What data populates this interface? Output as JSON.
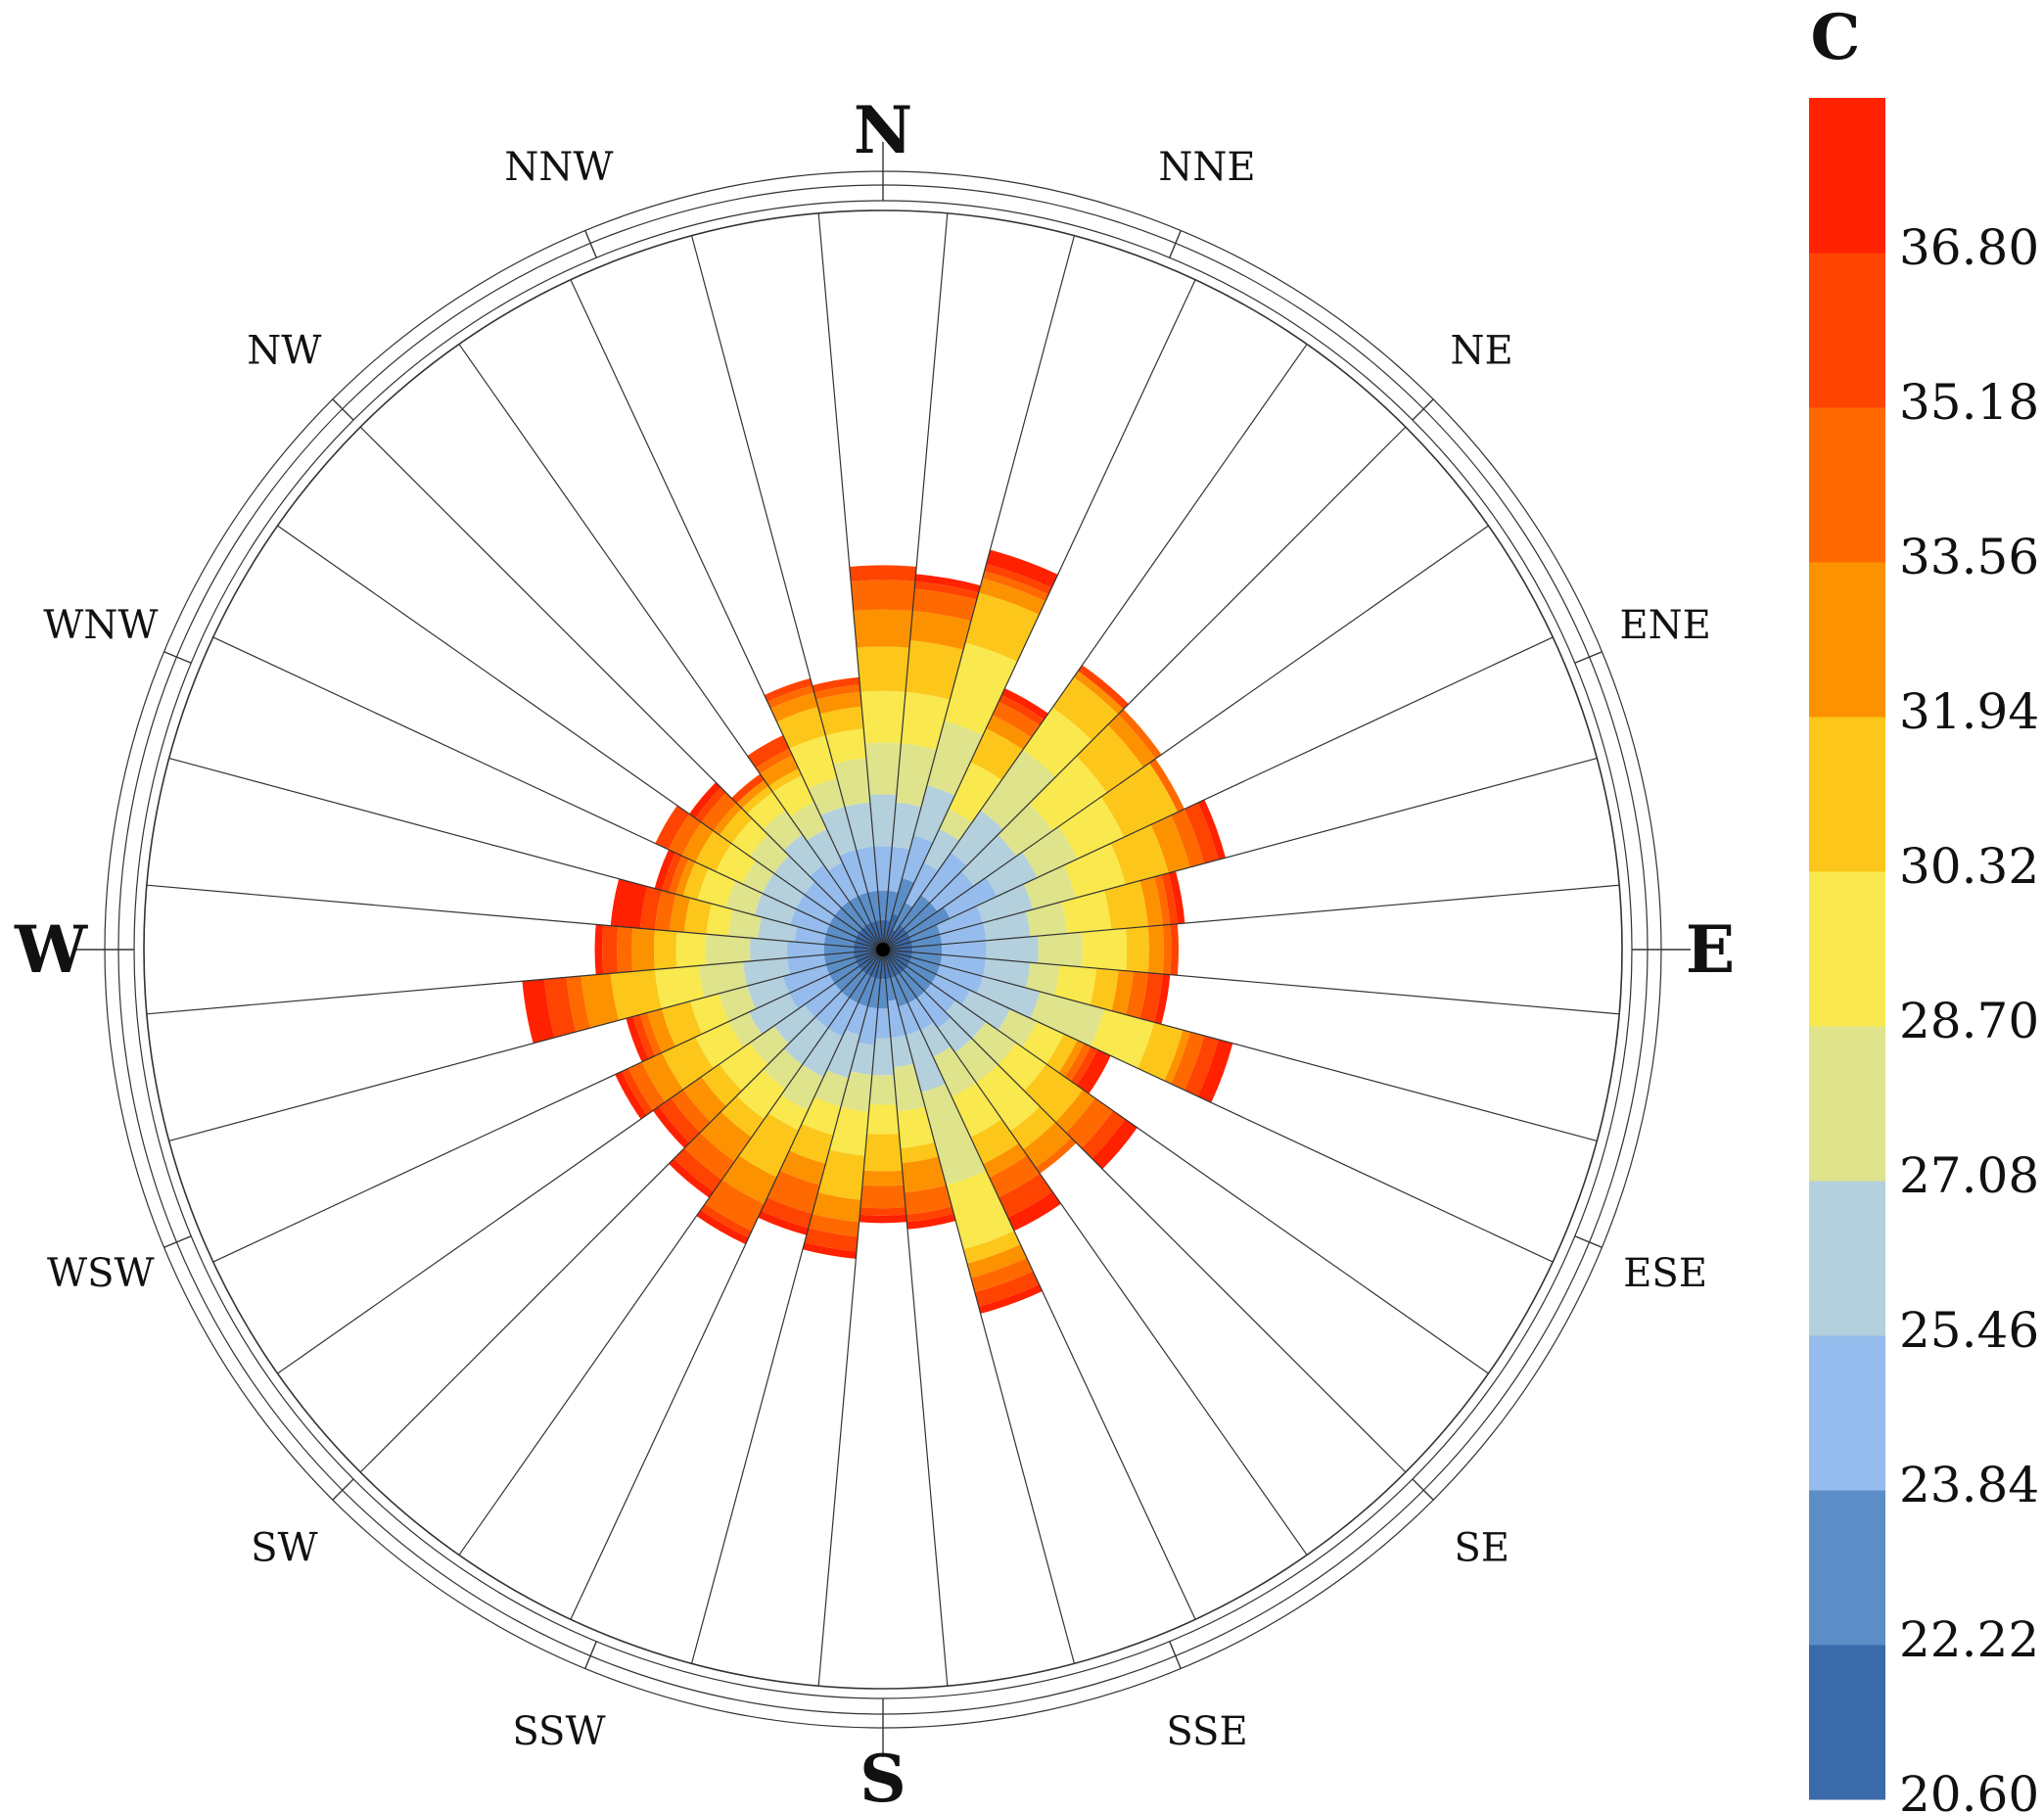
{
  "chart_data": {
    "type": "rose",
    "title": "",
    "legend_title": "C",
    "legend_position": "right",
    "direction_labels": {
      "major": [
        "N",
        "E",
        "S",
        "W"
      ],
      "minor": [
        "NNE",
        "NE",
        "ENE",
        "ESE",
        "SE",
        "SSE",
        "SSW",
        "SW",
        "WSW",
        "WNW",
        "NW",
        "NNW"
      ]
    },
    "bin_edges": [
      20.6,
      22.22,
      23.84,
      25.46,
      27.08,
      28.7,
      30.32,
      31.94,
      33.56,
      35.18,
      36.8
    ],
    "legend_ticks": [
      "36.80",
      "35.18",
      "33.56",
      "31.94",
      "30.32",
      "28.70",
      "27.08",
      "25.46",
      "23.84",
      "22.22",
      "20.60"
    ],
    "colors": [
      "#3b6aaa",
      "#5b8ec7",
      "#95bcec",
      "#b3d0dc",
      "#dee38c",
      "#f9e84e",
      "#fcc71a",
      "#fd9200",
      "#ff6a00",
      "#ff4300",
      "#ff2100"
    ],
    "sector_count": 36,
    "sector_start_angle_deg": -5,
    "radial_max": 1.0,
    "note": "Stacked radial extents per 10-degree sector (relative to outer ring = 1.0), one list of 11 class boundaries per sector, innermost to outermost.",
    "sectors": [
      [
        0.04,
        0.08,
        0.14,
        0.21,
        0.28,
        0.35,
        0.41,
        0.46,
        0.5,
        0.52,
        0.52
      ],
      [
        0.04,
        0.08,
        0.14,
        0.2,
        0.28,
        0.35,
        0.42,
        0.46,
        0.49,
        0.5,
        0.51
      ],
      [
        0.05,
        0.1,
        0.16,
        0.23,
        0.32,
        0.43,
        0.5,
        0.52,
        0.53,
        0.54,
        0.56
      ],
      [
        0.03,
        0.07,
        0.13,
        0.18,
        0.21,
        0.28,
        0.33,
        0.35,
        0.37,
        0.38,
        0.39
      ],
      [
        0.04,
        0.09,
        0.16,
        0.23,
        0.33,
        0.4,
        0.45,
        0.46,
        0.46,
        0.47,
        0.47
      ],
      [
        0.04,
        0.09,
        0.15,
        0.22,
        0.28,
        0.37,
        0.43,
        0.45,
        0.46,
        0.46,
        0.46
      ],
      [
        0.04,
        0.1,
        0.17,
        0.23,
        0.29,
        0.36,
        0.44,
        0.44,
        0.45,
        0.45,
        0.45
      ],
      [
        0.04,
        0.08,
        0.14,
        0.21,
        0.27,
        0.34,
        0.4,
        0.43,
        0.45,
        0.47,
        0.48
      ],
      [
        0.04,
        0.08,
        0.14,
        0.2,
        0.25,
        0.31,
        0.36,
        0.38,
        0.39,
        0.4,
        0.41
      ],
      [
        0.04,
        0.08,
        0.14,
        0.21,
        0.27,
        0.33,
        0.36,
        0.38,
        0.39,
        0.4,
        0.4
      ],
      [
        0.04,
        0.08,
        0.14,
        0.2,
        0.24,
        0.29,
        0.32,
        0.34,
        0.36,
        0.38,
        0.39
      ],
      [
        0.04,
        0.08,
        0.14,
        0.22,
        0.31,
        0.38,
        0.42,
        0.43,
        0.45,
        0.47,
        0.49
      ],
      [
        0.04,
        0.08,
        0.13,
        0.19,
        0.23,
        0.27,
        0.29,
        0.3,
        0.31,
        0.32,
        0.34
      ],
      [
        0.04,
        0.08,
        0.12,
        0.17,
        0.22,
        0.27,
        0.33,
        0.35,
        0.38,
        0.4,
        0.42
      ],
      [
        0.04,
        0.08,
        0.13,
        0.17,
        0.22,
        0.3,
        0.33,
        0.36,
        0.37,
        0.37,
        0.37
      ],
      [
        0.04,
        0.08,
        0.12,
        0.16,
        0.22,
        0.28,
        0.32,
        0.34,
        0.37,
        0.4,
        0.42
      ],
      [
        0.04,
        0.08,
        0.12,
        0.2,
        0.33,
        0.42,
        0.44,
        0.46,
        0.48,
        0.5,
        0.51
      ],
      [
        0.04,
        0.07,
        0.12,
        0.16,
        0.22,
        0.27,
        0.29,
        0.33,
        0.36,
        0.37,
        0.38
      ],
      [
        0.04,
        0.08,
        0.12,
        0.17,
        0.21,
        0.25,
        0.3,
        0.32,
        0.35,
        0.36,
        0.37
      ],
      [
        0.04,
        0.08,
        0.13,
        0.17,
        0.22,
        0.28,
        0.34,
        0.37,
        0.39,
        0.41,
        0.42
      ],
      [
        0.04,
        0.08,
        0.12,
        0.18,
        0.22,
        0.26,
        0.3,
        0.33,
        0.37,
        0.39,
        0.4
      ],
      [
        0.04,
        0.08,
        0.13,
        0.19,
        0.24,
        0.27,
        0.34,
        0.38,
        0.42,
        0.43,
        0.44
      ],
      [
        0.04,
        0.08,
        0.13,
        0.19,
        0.23,
        0.28,
        0.31,
        0.35,
        0.38,
        0.4,
        0.41
      ],
      [
        0.04,
        0.08,
        0.13,
        0.18,
        0.22,
        0.27,
        0.3,
        0.33,
        0.35,
        0.37,
        0.38
      ],
      [
        0.04,
        0.08,
        0.14,
        0.2,
        0.23,
        0.28,
        0.33,
        0.36,
        0.38,
        0.39,
        0.4
      ],
      [
        0.04,
        0.08,
        0.14,
        0.19,
        0.23,
        0.27,
        0.31,
        0.33,
        0.34,
        0.35,
        0.36
      ],
      [
        0.04,
        0.08,
        0.13,
        0.19,
        0.25,
        0.31,
        0.37,
        0.41,
        0.43,
        0.46,
        0.49
      ],
      [
        0.04,
        0.08,
        0.13,
        0.18,
        0.24,
        0.28,
        0.31,
        0.34,
        0.36,
        0.38,
        0.39
      ],
      [
        0.04,
        0.08,
        0.12,
        0.17,
        0.21,
        0.24,
        0.27,
        0.29,
        0.31,
        0.33,
        0.37
      ],
      [
        0.04,
        0.08,
        0.13,
        0.18,
        0.22,
        0.26,
        0.28,
        0.29,
        0.3,
        0.31,
        0.32
      ],
      [
        0.04,
        0.08,
        0.13,
        0.18,
        0.21,
        0.25,
        0.28,
        0.3,
        0.32,
        0.34,
        0.34
      ],
      [
        0.04,
        0.08,
        0.13,
        0.18,
        0.22,
        0.25,
        0.27,
        0.28,
        0.3,
        0.31,
        0.32
      ],
      [
        0.04,
        0.08,
        0.14,
        0.19,
        0.23,
        0.26,
        0.27,
        0.28,
        0.28,
        0.29,
        0.29
      ],
      [
        0.04,
        0.08,
        0.13,
        0.18,
        0.22,
        0.26,
        0.27,
        0.29,
        0.3,
        0.32,
        0.32
      ],
      [
        0.04,
        0.08,
        0.14,
        0.2,
        0.24,
        0.3,
        0.34,
        0.36,
        0.37,
        0.38,
        0.38
      ],
      [
        0.04,
        0.08,
        0.14,
        0.2,
        0.26,
        0.3,
        0.33,
        0.35,
        0.36,
        0.37,
        0.37
      ]
    ]
  }
}
